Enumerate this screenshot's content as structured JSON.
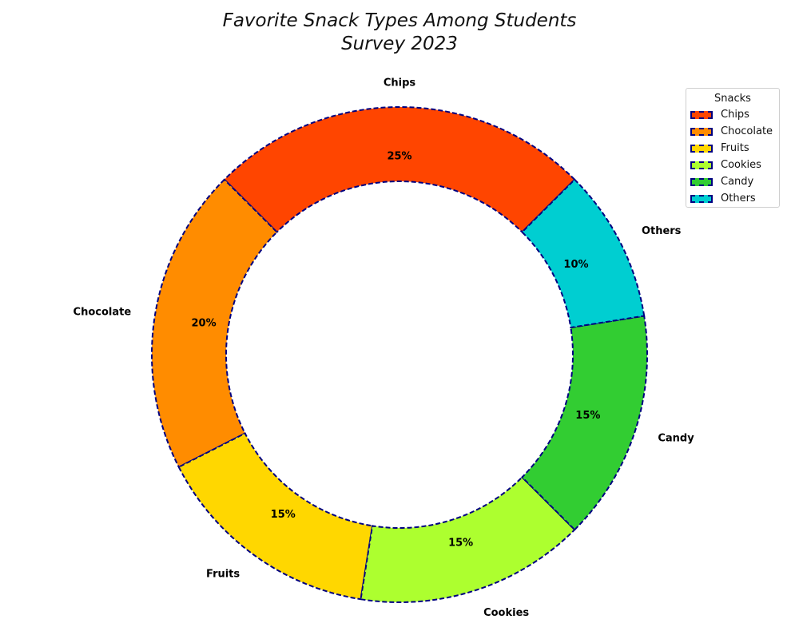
{
  "chart_data": {
    "type": "pie",
    "variant": "donut",
    "title": "Favorite Snack Types Among Students",
    "subtitle": "Survey 2023",
    "categories": [
      "Chips",
      "Chocolate",
      "Fruits",
      "Cookies",
      "Candy",
      "Others"
    ],
    "values": [
      25,
      20,
      15,
      15,
      15,
      10
    ],
    "value_labels": [
      "25%",
      "20%",
      "15%",
      "15%",
      "15%",
      "10%"
    ],
    "colors": [
      "#ff4500",
      "#ff8c00",
      "#ffd700",
      "#adff2f",
      "#32cd32",
      "#00ced1"
    ],
    "edge_color": "#000080",
    "edge_style": "dashed",
    "start_angle_deg": 45,
    "direction": "counterclockwise",
    "legend": {
      "title": "Snacks",
      "placement": "top-right"
    }
  }
}
